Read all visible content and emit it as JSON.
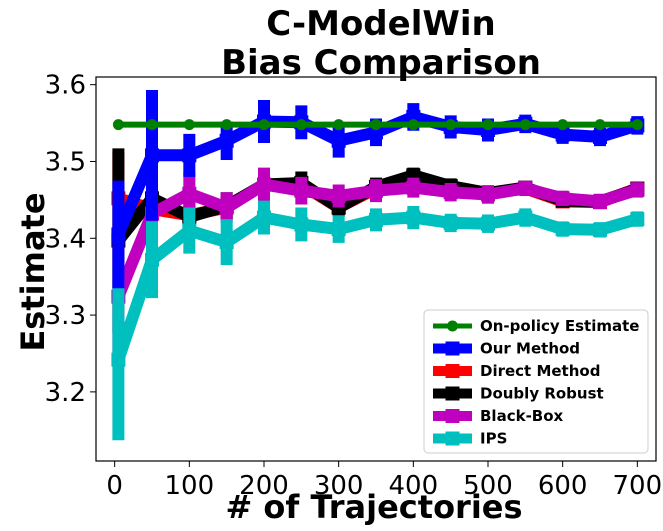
{
  "chart_data": {
    "type": "line",
    "title_lines": [
      "C-ModelWin",
      "Bias Comparison"
    ],
    "xlabel": "# of Trajectories",
    "ylabel": "Estimate",
    "xlim": [
      -25,
      725
    ],
    "ylim": [
      3.11,
      3.61
    ],
    "xticks": [
      0,
      100,
      200,
      300,
      400,
      500,
      600,
      700
    ],
    "yticks": [
      3.2,
      3.3,
      3.4,
      3.5,
      3.6
    ],
    "ytick_labels": [
      "3.2",
      "3.3",
      "3.4",
      "3.5",
      "3.6"
    ],
    "x": [
      5,
      50,
      100,
      150,
      200,
      250,
      300,
      350,
      400,
      450,
      500,
      550,
      600,
      650,
      700
    ],
    "legend_position": "bottom-right",
    "series": [
      {
        "name": "Direct Method",
        "color": "#ff0000",
        "marker": "square",
        "linewidth": 12,
        "values": [
          3.452,
          3.438,
          3.43,
          3.44,
          3.47,
          3.47,
          3.44,
          3.465,
          3.48,
          3.467,
          3.458,
          3.465,
          3.448,
          3.447,
          3.465
        ],
        "errors": [
          0.06,
          0.015,
          0.012,
          0.015,
          0.012,
          0.012,
          0.01,
          0.012,
          0.01,
          0.01,
          0.01,
          0.008,
          0.008,
          0.008,
          0.008
        ]
      },
      {
        "name": "Doubly Robust",
        "color": "#000000",
        "marker": "square",
        "linewidth": 12,
        "values": [
          3.397,
          3.452,
          3.428,
          3.442,
          3.47,
          3.472,
          3.44,
          3.467,
          3.482,
          3.468,
          3.459,
          3.466,
          3.449,
          3.448,
          3.464
        ],
        "errors": [
          0.12,
          0.02,
          0.018,
          0.018,
          0.015,
          0.015,
          0.012,
          0.012,
          0.01,
          0.01,
          0.01,
          0.008,
          0.008,
          0.008,
          0.008
        ]
      },
      {
        "name": "Black-Box",
        "color": "#bf00bf",
        "marker": "square",
        "linewidth": 12,
        "values": [
          3.324,
          3.432,
          3.458,
          3.44,
          3.47,
          3.462,
          3.455,
          3.462,
          3.466,
          3.46,
          3.457,
          3.465,
          3.452,
          3.448,
          3.463
        ],
        "errors": [
          0.08,
          0.025,
          0.028,
          0.02,
          0.022,
          0.018,
          0.015,
          0.015,
          0.013,
          0.012,
          0.012,
          0.01,
          0.01,
          0.01,
          0.01
        ]
      },
      {
        "name": "IPS",
        "color": "#00bfbf",
        "marker": "square",
        "linewidth": 12,
        "values": [
          3.242,
          3.372,
          3.41,
          3.395,
          3.427,
          3.418,
          3.412,
          3.424,
          3.427,
          3.42,
          3.419,
          3.427,
          3.412,
          3.411,
          3.425
        ],
        "errors": [
          0.105,
          0.05,
          0.03,
          0.03,
          0.022,
          0.022,
          0.018,
          0.015,
          0.015,
          0.012,
          0.012,
          0.012,
          0.01,
          0.01,
          0.01
        ]
      },
      {
        "name": "Our Method",
        "color": "#0000ff",
        "marker": "square",
        "linewidth": 12,
        "values": [
          3.405,
          3.508,
          3.508,
          3.527,
          3.552,
          3.551,
          3.527,
          3.538,
          3.558,
          3.545,
          3.541,
          3.549,
          3.535,
          3.532,
          3.547
        ],
        "errors": [
          0.07,
          0.085,
          0.028,
          0.025,
          0.028,
          0.022,
          0.022,
          0.018,
          0.018,
          0.015,
          0.015,
          0.012,
          0.012,
          0.012,
          0.012
        ]
      },
      {
        "name": "On-policy Estimate",
        "color": "#008000",
        "marker": "circle",
        "linewidth": 6,
        "values": [
          3.548,
          3.548,
          3.548,
          3.548,
          3.548,
          3.548,
          3.548,
          3.548,
          3.548,
          3.548,
          3.548,
          3.548,
          3.548,
          3.548,
          3.548
        ],
        "errors": [
          0,
          0,
          0,
          0,
          0,
          0,
          0,
          0,
          0,
          0,
          0,
          0,
          0,
          0,
          0
        ]
      }
    ],
    "legend_order": [
      "On-policy Estimate",
      "Our Method",
      "Direct Method",
      "Doubly Robust",
      "Black-Box",
      "IPS"
    ]
  }
}
